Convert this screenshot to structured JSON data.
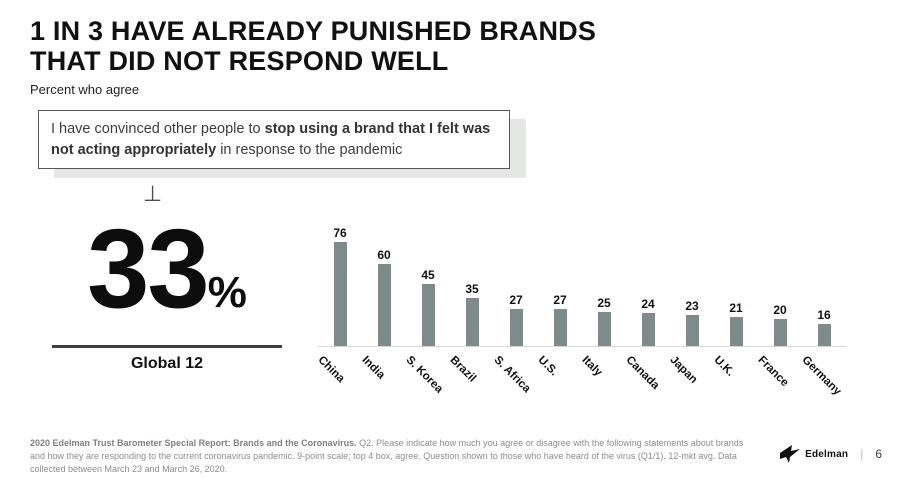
{
  "slide": {
    "title_line1": "1 IN 3 HAVE ALREADY PUNISHED BRANDS",
    "title_line2": "THAT DID NOT RESPOND WELL",
    "subtitle": "Percent who agree",
    "quote": {
      "segment1": "I have convinced other people to ",
      "segment2_bold": "stop using a brand that I felt was not acting appropriately",
      "segment3": " in response to the pandemic"
    },
    "perp_glyph": "⊥",
    "stat": {
      "value": "33",
      "unit": "%",
      "label": "Global 12"
    },
    "footer": {
      "bold": "2020 Edelman Trust Barometer Special Report: Brands and the Coronavirus.",
      "rest": " Q2. Please indicate how much you agree or disagree with the following statements about brands and how they are responding to the current coronavirus pandemic. 9-point scale; top 4 box, agree. Question shown to those who have heard of the virus (Q1/1). 12-mkt avg. Data collected between March 23 and March 26, 2020."
    },
    "brand": {
      "logo_text": "Edelman",
      "separator": "|",
      "page_number": "6"
    }
  },
  "chart_data": {
    "type": "bar",
    "categories": [
      "China",
      "India",
      "S. Korea",
      "Brazil",
      "S. Africa",
      "U.S.",
      "Italy",
      "Canada",
      "Japan",
      "U.K.",
      "France",
      "Germany"
    ],
    "values": [
      76,
      60,
      45,
      35,
      27,
      27,
      25,
      24,
      23,
      21,
      20,
      16
    ],
    "title": "Percent who agree",
    "xlabel": "",
    "ylabel": "",
    "ylim": [
      0,
      80
    ],
    "grid": false,
    "legend": false,
    "value_labels": true,
    "bar_color": "#7e8b8a",
    "baseline_color": "#d6d6d6"
  },
  "colors": {
    "title_text": "#111111",
    "quote_shadow": "#e4e7e4",
    "stat_rule": "#3f3f3f",
    "footer_text": "#8c8c8c",
    "logo_black": "#111111"
  }
}
